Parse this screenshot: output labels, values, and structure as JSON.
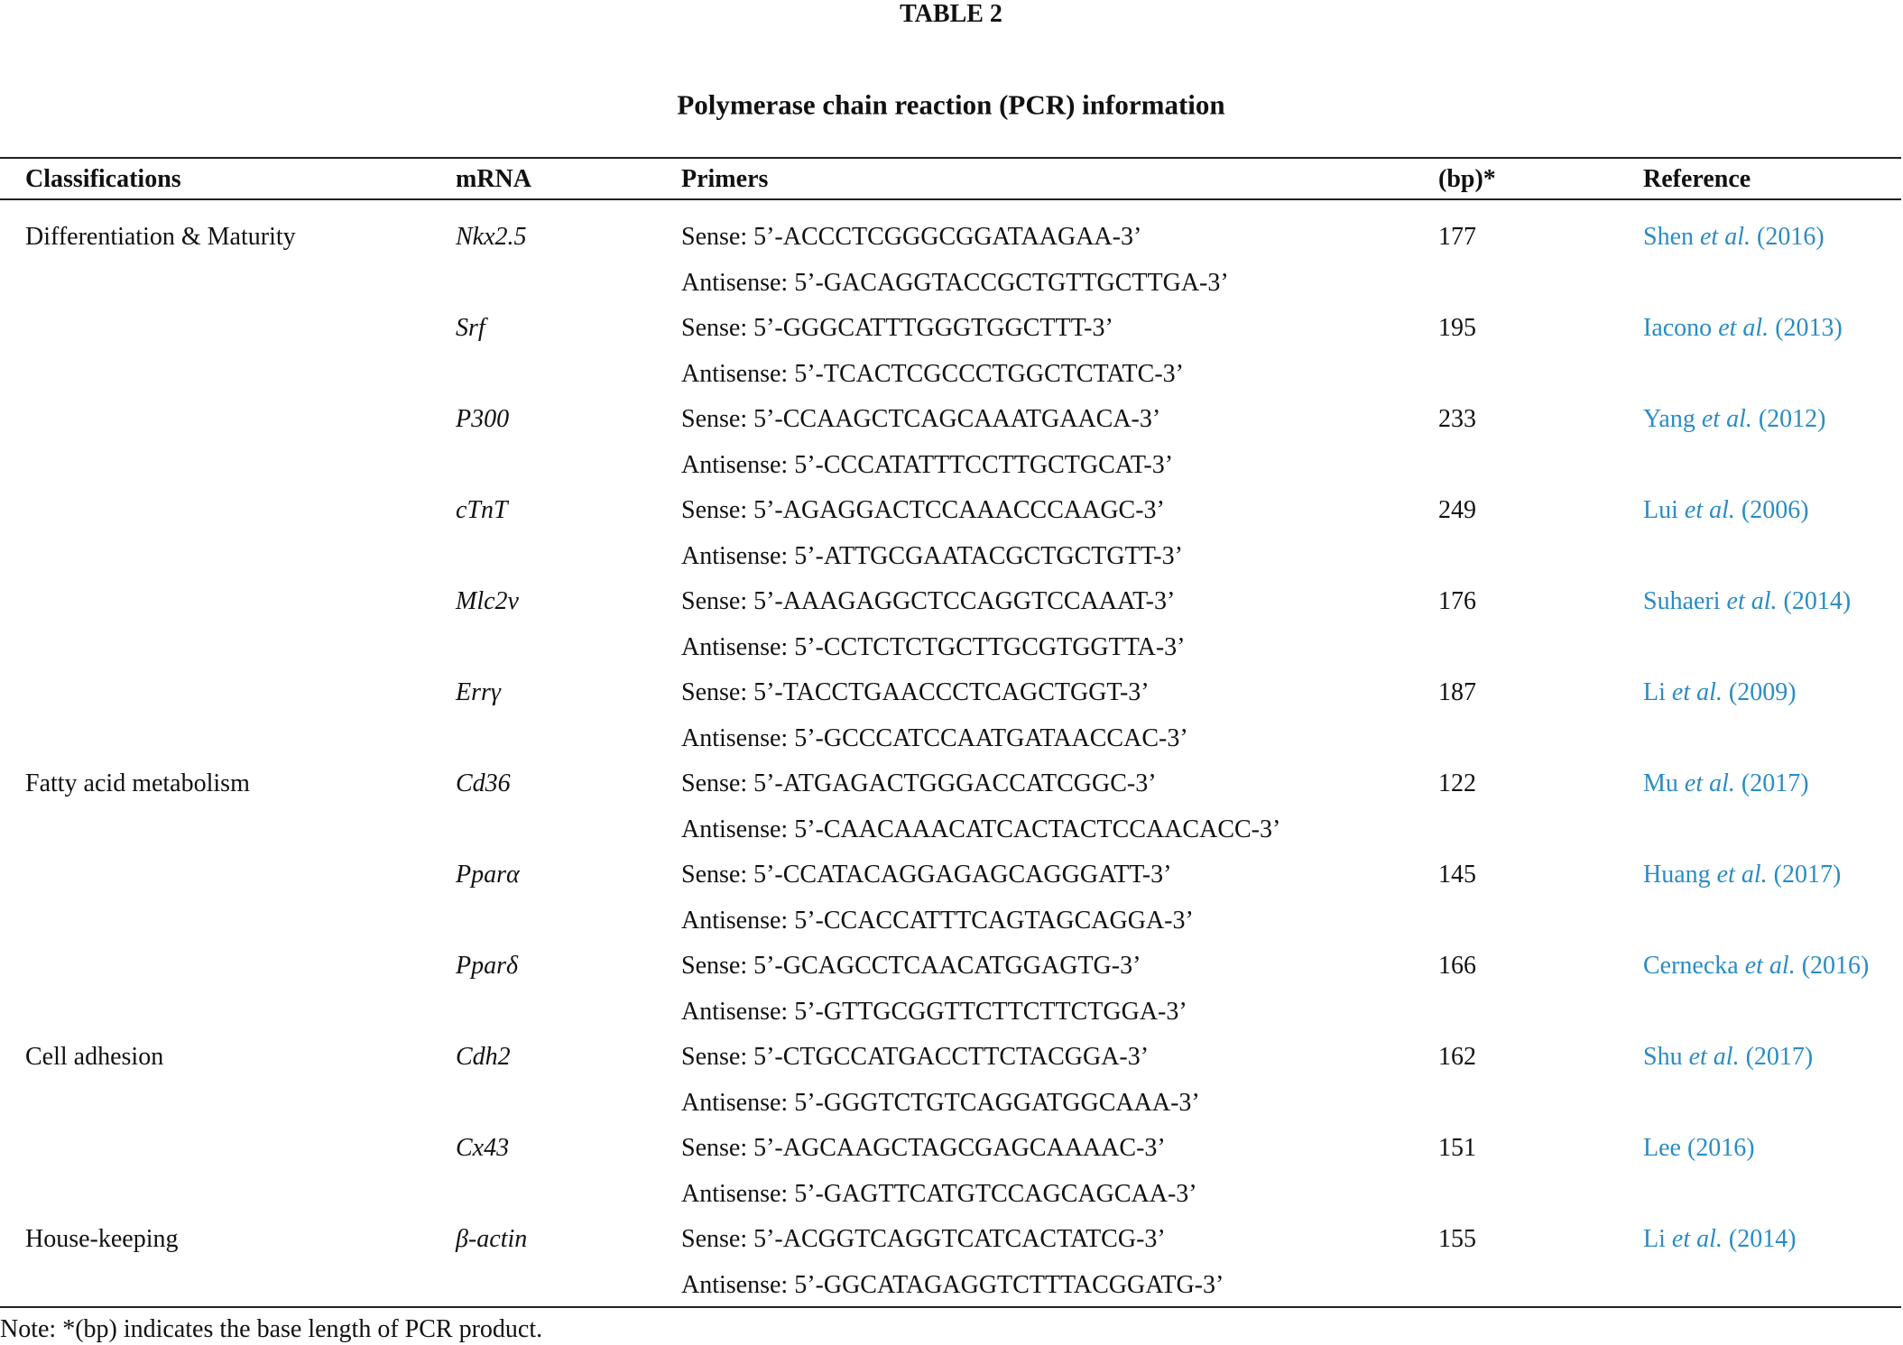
{
  "header": {
    "title": "TABLE 2",
    "subtitle": "Polymerase chain reaction (PCR) information"
  },
  "table": {
    "columns": [
      "Classifications",
      "mRNA",
      "Primers",
      "(bp)*",
      "Reference"
    ],
    "rows": [
      {
        "classification": "Differentiation & Maturity",
        "mrna": "Nkx2.5",
        "sense": "Sense: 5’-ACCCTCGGGCGGATAAGAA-3’",
        "antisense": "Antisense: 5’-GACAGGTACCGCTGTTGCTTGA-3’",
        "bp": 177,
        "reference": {
          "author": "Shen",
          "etal": "et al.",
          "year": "(2016)"
        }
      },
      {
        "mrna": "Srf",
        "sense": "Sense: 5’-GGGCATTTGGGTGGCTTT-3’",
        "antisense": "Antisense: 5’-TCACTCGCCCTGGCTCTATC-3’",
        "bp": 195,
        "reference": {
          "author": "Iacono",
          "etal": "et al.",
          "year": "(2013)"
        }
      },
      {
        "mrna": "P300",
        "sense": "Sense: 5’-CCAAGCTCAGCAAATGAACA-3’",
        "antisense": "Antisense: 5’-CCCATATTTCCTTGCTGCAT-3’",
        "bp": 233,
        "reference": {
          "author": "Yang",
          "etal": "et al.",
          "year": "(2012)"
        }
      },
      {
        "mrna": "cTnT",
        "sense": "Sense: 5’-AGAGGACTCCAAACCCAAGC-3’",
        "antisense": "Antisense: 5’-ATTGCGAATACGCTGCTGTT-3’",
        "bp": 249,
        "reference": {
          "author": "Lui",
          "etal": "et al.",
          "year": "(2006)"
        }
      },
      {
        "mrna": "Mlc2v",
        "sense": "Sense: 5’-AAAGAGGCTCCAGGTCCAAAT-3’",
        "antisense": "Antisense: 5’-CCTCTCTGCTTGCGTGGTTA-3’",
        "bp": 176,
        "reference": {
          "author": "Suhaeri",
          "etal": "et al.",
          "year": "(2014)"
        }
      },
      {
        "mrna": "Errγ",
        "sense": "Sense: 5’-TACCTGAACCCTCAGCTGGT-3’",
        "antisense": "Antisense: 5’-GCCCATCCAATGATAACCAC-3’",
        "bp": 187,
        "reference": {
          "author": "Li",
          "etal": "et al.",
          "year": "(2009)"
        }
      },
      {
        "classification": "Fatty acid metabolism",
        "mrna": "Cd36",
        "sense": "Sense: 5’-ATGAGACTGGGACCATCGGC-3’",
        "antisense": "Antisense: 5’-CAACAAACATCACTACTCCAACACC-3’",
        "bp": 122,
        "reference": {
          "author": "Mu",
          "etal": "et al.",
          "year": "(2017)"
        }
      },
      {
        "mrna": "Pparα",
        "sense": "Sense: 5’-CCATACAGGAGAGCAGGGATT-3’",
        "antisense": "Antisense: 5’-CCACCATTTCAGTAGCAGGA-3’",
        "bp": 145,
        "reference": {
          "author": "Huang",
          "etal": "et al.",
          "year": "(2017)"
        }
      },
      {
        "mrna": "Pparδ",
        "sense": "Sense: 5’-GCAGCCTCAACATGGAGTG-3’",
        "antisense": "Antisense: 5’-GTTGCGGTTCTTCTTCTGGA-3’",
        "bp": 166,
        "reference": {
          "author": "Cernecka",
          "etal": "et al.",
          "year": "(2016)"
        }
      },
      {
        "classification": "Cell adhesion",
        "mrna": "Cdh2",
        "sense": "Sense: 5’-CTGCCATGACCTTCTACGGA-3’",
        "antisense": "Antisense: 5’-GGGTCTGTCAGGATGGCAAA-3’",
        "bp": 162,
        "reference": {
          "author": "Shu",
          "etal": "et al.",
          "year": "(2017)"
        }
      },
      {
        "mrna": "Cx43",
        "sense": "Sense: 5’-AGCAAGCTAGCGAGCAAAAC-3’",
        "antisense": "Antisense: 5’-GAGTTCATGTCCAGCAGCAA-3’",
        "bp": 151,
        "reference": {
          "author": "Lee",
          "year": "(2016)"
        }
      },
      {
        "classification": "House-keeping",
        "mrna": "β-actin",
        "sense": "Sense: 5’-ACGGTCAGGTCATCACTATCG-3’",
        "antisense": "Antisense: 5’-GGCATAGAGGTCTTTACGGATG-3’",
        "bp": 155,
        "reference": {
          "author": "Li",
          "etal": "et al.",
          "year": "(2014)"
        }
      }
    ],
    "note": "Note: *(bp) indicates the base length of PCR product."
  }
}
